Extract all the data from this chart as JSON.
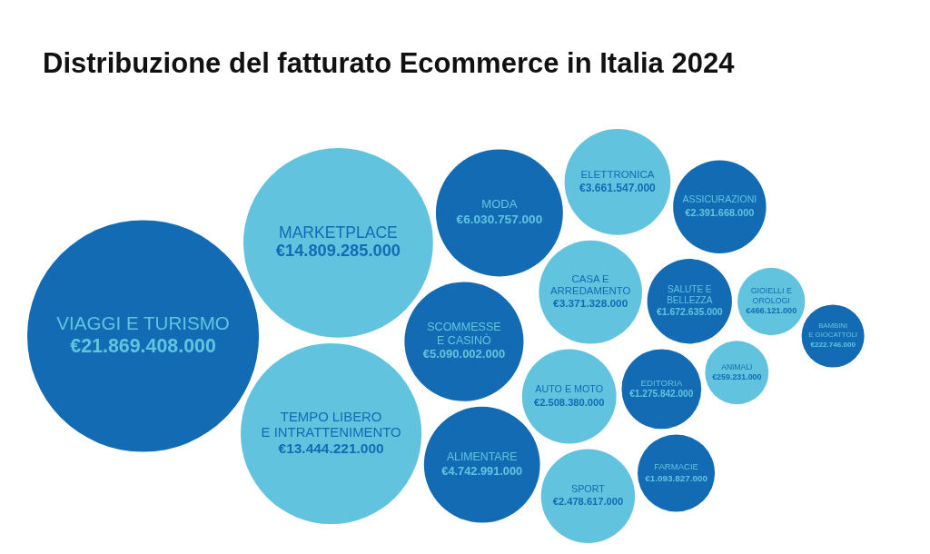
{
  "chart_data": {
    "type": "other",
    "title": "Distribuzione del fatturato Ecommerce in Italia 2024",
    "categories": [
      "VIAGGI E TURISMO",
      "MARKETPLACE",
      "TEMPO LIBERO\nE INTRATTENIMENTO",
      "MODA",
      "SCOMMESSE\nE CASINÒ",
      "ALIMENTARE",
      "ELETTRONICA",
      "CASA E\nARREDAMENTO",
      "AUTO E MOTO",
      "SPORT",
      "ASSICURAZIONI",
      "SALUTE E\nBELLEZZA",
      "EDITORIA",
      "FARMACIE",
      "GIOIELLI E\nOROLOGI",
      "ANIMALI",
      "BAMBINI\nE GIOCATTOLI"
    ],
    "values": [
      21869408000,
      14809285000,
      13444221000,
      6030757000,
      5090002000,
      4742991000,
      3661547000,
      3371328000,
      2508380000,
      2478617000,
      2391668000,
      1672635000,
      1275842000,
      1093827000,
      466121000,
      259231000,
      222746000
    ],
    "value_labels": [
      "€21.869.408.000",
      "€14.809.285.000",
      "€13.444.221.000",
      "€6.030.757.000",
      "€5.090.002.000",
      "€4.742.991.000",
      "€3.661.547.000",
      "€3.371.328.000",
      "€2.508.380.000",
      "€2.478.617.000",
      "€2.391.668.000",
      "€1.672.635.000",
      "€1.275.842.000",
      "€1.093.827.000",
      "€466.121.000",
      "€259.231.000",
      "€222.746.000"
    ],
    "colors": [
      "#136cb3",
      "#62c3df",
      "#62c3df",
      "#136cb3",
      "#136cb3",
      "#136cb3",
      "#62c3df",
      "#62c3df",
      "#62c3df",
      "#62c3df",
      "#136cb3",
      "#136cb3",
      "#136cb3",
      "#136cb3",
      "#62c3df",
      "#62c3df",
      "#136cb3"
    ]
  }
}
